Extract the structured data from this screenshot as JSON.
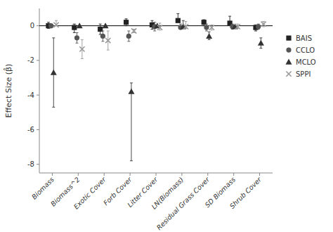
{
  "chart_data": {
    "type": "dot",
    "categories": [
      "Biomass",
      "Biomass^2",
      "Exotic Cover",
      "Forb Cover",
      "Litter Cover",
      "LN(Biomass)",
      "Residual Grass Cover",
      "SD Biomass",
      "Shrub Cover"
    ],
    "series": [
      {
        "name": "BAIS",
        "color": "#222222",
        "marker": "square",
        "values": [
          0.0,
          -0.1,
          -0.2,
          0.2,
          0.05,
          0.3,
          0.2,
          0.15,
          -0.1
        ],
        "err_lo": [
          0.15,
          0.3,
          0.3,
          0.2,
          0.25,
          0.0,
          0.2,
          0.0,
          0.2
        ],
        "err_hi": [
          0.2,
          0.2,
          0.3,
          0.2,
          0.25,
          0.4,
          0.15,
          0.4,
          0.15
        ]
      },
      {
        "name": "CCLO",
        "color": "#555555",
        "marker": "circle",
        "values": [
          0.0,
          -0.7,
          -0.6,
          -0.6,
          -0.05,
          -0.1,
          -0.1,
          -0.05,
          -0.05
        ],
        "err_lo": [
          0.05,
          0.3,
          0.3,
          0.3,
          0.25,
          0.1,
          0.2,
          0.15,
          0.15
        ],
        "err_hi": [
          0.05,
          0.3,
          0.3,
          0.3,
          0.25,
          0.2,
          0.2,
          0.15,
          0.15
        ]
      },
      {
        "name": "MCLO",
        "color": "#333333",
        "marker": "triangle",
        "values": [
          -2.7,
          0.0,
          0.0,
          -3.8,
          0.0,
          -0.05,
          -0.6,
          -0.05,
          -1.0
        ],
        "err_lo": [
          2.0,
          0.0,
          0.0,
          4.0,
          0.0,
          0.1,
          0.2,
          0.1,
          0.3
        ],
        "err_hi": [
          2.0,
          0.0,
          0.0,
          0.5,
          0.0,
          0.35,
          0.25,
          0.05,
          0.3
        ]
      },
      {
        "name": "SPPI",
        "color": "#999999",
        "marker": "x",
        "values": [
          0.05,
          -1.35,
          -0.85,
          -0.3,
          -0.1,
          -0.05,
          -0.1,
          -0.05,
          0.1
        ],
        "err_lo": [
          0.05,
          0.55,
          0.55,
          0.1,
          0.15,
          0.1,
          0.15,
          0.1,
          0.15
        ],
        "err_hi": [
          0.25,
          0.55,
          0.55,
          0.1,
          0.25,
          0.3,
          0.15,
          0.15,
          0.15
        ]
      }
    ],
    "ylabel": "Effect Size (β̂)",
    "ylim": [
      -8.5,
      1.0
    ],
    "yticks": [
      0,
      -2,
      -4,
      -6,
      -8
    ],
    "legend": "right"
  }
}
